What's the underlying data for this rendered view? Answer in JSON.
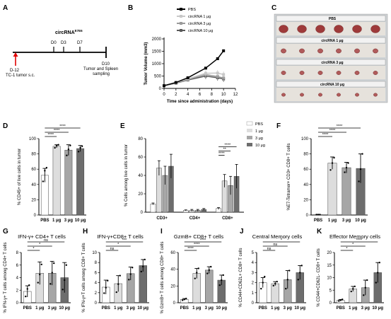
{
  "panels": {
    "A": {
      "letter": "A",
      "title": "circRNA",
      "title_sup": "E7E6",
      "days": [
        "D0",
        "D3",
        "D7"
      ],
      "start_label": "D-12",
      "start_desc": "TC-1 tumor s.c.",
      "end_label": "D10",
      "end_desc_1": "Tumor and Spleen",
      "end_desc_2": "sampling"
    },
    "B": {
      "letter": "B",
      "legend": [
        "PBS",
        "circRNA 1 μg",
        "circRNA 3 μg",
        "circRNA 10 μg"
      ],
      "legend_sup": "E7E6",
      "colors": [
        "#000000",
        "#c8c8c8",
        "#9a9a9a",
        "#5a5a5a"
      ]
    },
    "C": {
      "letter": "C",
      "strips": [
        "PBS",
        "circRNA 1 μg",
        "circRNA 3 μg",
        "circRNA 10 μg"
      ],
      "strip_sup": "E7E6"
    },
    "D": {
      "letter": "D"
    },
    "E": {
      "letter": "E",
      "legend": [
        "PBS",
        "1 μg",
        "3 μg",
        "10 μg"
      ]
    },
    "F": {
      "letter": "F"
    },
    "G": {
      "letter": "G"
    },
    "H": {
      "letter": "H"
    },
    "I": {
      "letter": "I"
    },
    "J": {
      "letter": "J"
    },
    "K": {
      "letter": "K"
    }
  },
  "chart_data": [
    {
      "id": "B",
      "type": "line",
      "xlabel": "Time since administration (days)",
      "ylabel": "Tumor Volume (mm3)",
      "xlim": [
        0,
        12
      ],
      "ylim": [
        0,
        2000
      ],
      "xticks": [
        0,
        2,
        4,
        6,
        8,
        10,
        12
      ],
      "yticks": [
        0,
        500,
        1000,
        1500,
        2000
      ],
      "series": [
        {
          "name": "PBS",
          "x": [
            0,
            2,
            4,
            7,
            9,
            10
          ],
          "y": [
            110,
            240,
            430,
            820,
            1200,
            1520
          ]
        },
        {
          "name": "circRNA 1 μg",
          "x": [
            0,
            2,
            4,
            7,
            9,
            10
          ],
          "y": [
            110,
            230,
            390,
            610,
            620,
            560
          ]
        },
        {
          "name": "circRNA 3 μg",
          "x": [
            0,
            2,
            4,
            7,
            9,
            10
          ],
          "y": [
            110,
            220,
            360,
            560,
            480,
            420
          ]
        },
        {
          "name": "circRNA 10 μg",
          "x": [
            0,
            2,
            4,
            7,
            9,
            10
          ],
          "y": [
            110,
            210,
            340,
            500,
            430,
            380
          ]
        }
      ]
    },
    {
      "id": "D",
      "type": "bar",
      "ylabel": "% CD45+ of live cells in tumor",
      "ylim": [
        0,
        100
      ],
      "yticks": [
        0,
        20,
        40,
        60,
        80,
        100
      ],
      "categories": [
        "PBS",
        "1 μg",
        "3 μg",
        "10 μg"
      ],
      "values": [
        52,
        90,
        85,
        87
      ],
      "errors": [
        9,
        2,
        7,
        4
      ],
      "points": [
        [
          44,
          58,
          62
        ],
        [
          88,
          91,
          92
        ],
        [
          78,
          86,
          91
        ],
        [
          83,
          88,
          90
        ]
      ],
      "significance": [
        {
          "from": 0,
          "to": 1,
          "label": "****"
        },
        {
          "from": 0,
          "to": 2,
          "label": "****"
        },
        {
          "from": 0,
          "to": 3,
          "label": "****"
        }
      ]
    },
    {
      "id": "E",
      "type": "bar",
      "ylabel": "% Cells among live cells in tumor",
      "ylim": [
        0,
        80
      ],
      "yticks": [
        0,
        20,
        40,
        60,
        80
      ],
      "categories": [
        "CD3+",
        "CD4+",
        "CD8+"
      ],
      "series": [
        {
          "name": "PBS",
          "values": [
            9,
            2,
            4
          ],
          "errors": [
            1,
            0.5,
            1
          ]
        },
        {
          "name": "1 μg",
          "values": [
            48,
            2,
            34
          ],
          "errors": [
            8,
            1,
            7
          ]
        },
        {
          "name": "3 μg",
          "values": [
            40,
            2,
            29
          ],
          "errors": [
            10,
            1,
            10
          ]
        },
        {
          "name": "10 μg",
          "values": [
            50,
            3,
            39
          ],
          "errors": [
            13,
            1,
            13
          ]
        }
      ],
      "significance": [
        {
          "group": 2,
          "from": 0,
          "to": 1,
          "label": "****"
        },
        {
          "group": 2,
          "from": 0,
          "to": 2,
          "label": "**"
        },
        {
          "group": 2,
          "from": 0,
          "to": 3,
          "label": "****"
        }
      ]
    },
    {
      "id": "F",
      "type": "bar",
      "ylabel": "%E7-Tetramer+ CD3+ CD8+ T cells",
      "ylim": [
        0,
        100
      ],
      "yticks": [
        0,
        20,
        40,
        60,
        80,
        100
      ],
      "categories": [
        "PBS",
        "1 μg",
        "3 μg",
        "10 μg"
      ],
      "values": [
        0.5,
        68,
        62,
        61
      ],
      "errors": [
        0.3,
        8,
        7,
        19
      ],
      "points": [
        [
          0.5,
          0.5,
          0.5
        ],
        [
          59,
          68,
          75
        ],
        [
          56,
          62,
          68
        ],
        [
          44,
          60,
          80
        ]
      ],
      "significance": [
        {
          "from": 0,
          "to": 1,
          "label": "****"
        },
        {
          "from": 0,
          "to": 2,
          "label": "****"
        },
        {
          "from": 0,
          "to": 3,
          "label": "****"
        }
      ]
    },
    {
      "id": "G",
      "type": "bar",
      "title": "IFN-γ+ CD4+ T cells",
      "ylabel": "% IFN-γ+ T cells among CD4+ T cells",
      "ylim": [
        0,
        8
      ],
      "yticks": [
        0,
        2,
        4,
        6,
        8
      ],
      "categories": [
        "PBS",
        "1 μg",
        "3 μg",
        "10 μg"
      ],
      "values": [
        1.8,
        4.7,
        4.7,
        4.0
      ],
      "errors": [
        0.9,
        1.8,
        1.9,
        2.4
      ],
      "points": [
        [
          1.0,
          2.2,
          2.8
        ],
        [
          3.2,
          4.5,
          6.1
        ],
        [
          3.0,
          4.8,
          6.3
        ],
        [
          2.1,
          3.6,
          6.0
        ]
      ],
      "significance": [
        {
          "from": 0,
          "to": 1,
          "label": "*"
        },
        {
          "from": 0,
          "to": 2,
          "label": "*"
        },
        {
          "from": 0,
          "to": 3,
          "label": "ns"
        }
      ]
    },
    {
      "id": "H",
      "type": "bar",
      "title": "IFN-γ+CD8+ T cells",
      "ylabel": "% IFN-γ+T cells among CD8+ T cells",
      "ylim": [
        0,
        10
      ],
      "yticks": [
        0,
        2,
        4,
        6,
        8,
        10
      ],
      "categories": [
        "PBS",
        "1 μg",
        "3 μg",
        "10 μg"
      ],
      "values": [
        3.1,
        3.8,
        5.8,
        7.4
      ],
      "errors": [
        1.4,
        1.6,
        1.3,
        1.2
      ],
      "points": [
        [
          1.9,
          3.0,
          4.4
        ],
        [
          2.1,
          3.7,
          5.4
        ],
        [
          4.6,
          5.7,
          7.0
        ],
        [
          6.2,
          7.2,
          8.6
        ]
      ],
      "significance": [
        {
          "from": 0,
          "to": 1,
          "label": "ns"
        },
        {
          "from": 0,
          "to": 2,
          "label": "*"
        },
        {
          "from": 0,
          "to": 3,
          "label": "***"
        }
      ]
    },
    {
      "id": "I",
      "type": "bar",
      "title": "GzmB+ CD8+ T cells",
      "ylabel": "% GzmB+ T cells among CD8+ T cells",
      "ylim": [
        0,
        60
      ],
      "yticks": [
        0,
        20,
        40,
        60
      ],
      "categories": [
        "PBS",
        "1 μg",
        "3 μg",
        "10 μg"
      ],
      "values": [
        4,
        35,
        39,
        27
      ],
      "errors": [
        1,
        6,
        4,
        6
      ],
      "points": [
        [
          3,
          4,
          5
        ],
        [
          29,
          36,
          41
        ],
        [
          35,
          39,
          43
        ],
        [
          21,
          27,
          33
        ]
      ],
      "significance": [
        {
          "from": 0,
          "to": 1,
          "label": "****"
        },
        {
          "from": 0,
          "to": 2,
          "label": "****"
        },
        {
          "from": 0,
          "to": 3,
          "label": "****"
        }
      ]
    },
    {
      "id": "J",
      "type": "bar",
      "title": "Central Memory cells",
      "ylabel": "% CD44+CD62L+ CD8+ T cells",
      "ylim": [
        0,
        5
      ],
      "yticks": [
        0,
        1,
        2,
        3,
        4,
        5
      ],
      "categories": [
        "PBS",
        "1 μg",
        "3 μg",
        "10 μg"
      ],
      "values": [
        2.0,
        1.9,
        2.3,
        3.0
      ],
      "errors": [
        0.5,
        0.2,
        0.9,
        0.7
      ],
      "points": [
        [
          1.4,
          2.0,
          2.6
        ],
        [
          1.7,
          1.9,
          2.1
        ],
        [
          1.4,
          2.3,
          3.2
        ],
        [
          2.3,
          3.0,
          3.7
        ]
      ],
      "significance": [
        {
          "from": 0,
          "to": 1,
          "label": "ns"
        },
        {
          "from": 0,
          "to": 2,
          "label": "ns"
        },
        {
          "from": 0,
          "to": 3,
          "label": "*"
        }
      ]
    },
    {
      "id": "K",
      "type": "bar",
      "title": "Effector Memory cells",
      "ylabel": "% CD44+CD62L- CD8+ T cells",
      "ylim": [
        0,
        20
      ],
      "yticks": [
        0,
        5,
        10,
        15,
        20
      ],
      "categories": [
        "PBS",
        "1 μg",
        "3 μg",
        "10 μg"
      ],
      "values": [
        1.0,
        5.5,
        6.0,
        12.0
      ],
      "errors": [
        0.3,
        1.0,
        3.0,
        4.0
      ],
      "points": [
        [
          0.7,
          1.0,
          1.3
        ],
        [
          4.5,
          5.5,
          6.5
        ],
        [
          3.0,
          6.0,
          9.0
        ],
        [
          8.0,
          12.0,
          16.0
        ]
      ],
      "significance": [
        {
          "from": 0,
          "to": 1,
          "label": "*"
        },
        {
          "from": 0,
          "to": 2,
          "label": "*"
        },
        {
          "from": 0,
          "to": 3,
          "label": "****"
        }
      ]
    }
  ]
}
